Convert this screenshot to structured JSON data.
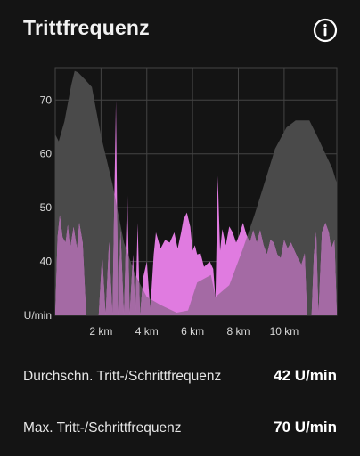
{
  "header": {
    "title": "Trittfrequenz",
    "info_icon": "info-circle-icon"
  },
  "colors": {
    "background": "#141414",
    "grid": "#444444",
    "elevation_area": "#4a4a4a",
    "cadence_area": "#e07be0",
    "cadence_overlap": "#a46aa4",
    "text": "#f2f2f2"
  },
  "chart_data": {
    "type": "area",
    "title": "",
    "xlabel": "",
    "ylabel": "U/min",
    "xlim": [
      0,
      12.3
    ],
    "ylim": [
      30,
      76
    ],
    "y_ticks": [
      "U/min",
      "40",
      "50",
      "60",
      "70"
    ],
    "y_tick_values": [
      30,
      40,
      50,
      60,
      70
    ],
    "x_ticks": [
      "2 km",
      "4 km",
      "6 km",
      "8 km",
      "10 km"
    ],
    "x_tick_values": [
      2,
      4,
      6,
      8,
      10
    ],
    "grid": true,
    "series": [
      {
        "role": "elevation-profile",
        "color": "#4a4a4a",
        "points": [
          [
            0.0,
            63.6
          ],
          [
            0.15,
            62.3
          ],
          [
            0.4,
            66.0
          ],
          [
            0.7,
            72.8
          ],
          [
            0.85,
            75.4
          ],
          [
            1.0,
            75.1
          ],
          [
            1.3,
            73.8
          ],
          [
            1.6,
            72.4
          ],
          [
            2.0,
            63.3
          ],
          [
            2.5,
            54.4
          ],
          [
            3.0,
            43.5
          ],
          [
            3.5,
            37.5
          ],
          [
            4.0,
            33.4
          ],
          [
            4.6,
            31.9
          ],
          [
            5.3,
            30.5
          ],
          [
            5.8,
            30.9
          ],
          [
            6.2,
            36.1
          ],
          [
            6.8,
            37.5
          ],
          [
            7.0,
            33.4
          ],
          [
            7.6,
            35.6
          ],
          [
            8.2,
            42.4
          ],
          [
            8.7,
            48.6
          ],
          [
            9.2,
            55.4
          ],
          [
            9.6,
            60.9
          ],
          [
            10.1,
            64.9
          ],
          [
            10.5,
            66.2
          ],
          [
            11.1,
            66.2
          ],
          [
            11.5,
            62.8
          ],
          [
            11.8,
            60.0
          ],
          [
            12.1,
            57.3
          ],
          [
            12.3,
            54.5
          ]
        ]
      },
      {
        "role": "cadence",
        "color": "#e07be0",
        "points": [
          [
            0.0,
            30.0
          ],
          [
            0.1,
            44.5
          ],
          [
            0.2,
            48.6
          ],
          [
            0.32,
            44.5
          ],
          [
            0.45,
            43.5
          ],
          [
            0.55,
            46.8
          ],
          [
            0.65,
            42.4
          ],
          [
            0.8,
            46.4
          ],
          [
            0.95,
            42.4
          ],
          [
            1.05,
            47.2
          ],
          [
            1.2,
            43.5
          ],
          [
            1.35,
            30.0
          ],
          [
            1.9,
            30.0
          ],
          [
            2.05,
            41.3
          ],
          [
            2.2,
            30.0
          ],
          [
            2.35,
            43.6
          ],
          [
            2.5,
            30.0
          ],
          [
            2.65,
            69.9
          ],
          [
            2.75,
            30.0
          ],
          [
            2.85,
            45.8
          ],
          [
            3.0,
            30.0
          ],
          [
            3.15,
            53.2
          ],
          [
            3.25,
            30.0
          ],
          [
            3.4,
            41.3
          ],
          [
            3.5,
            30.0
          ],
          [
            3.6,
            47.2
          ],
          [
            3.7,
            30.0
          ],
          [
            3.85,
            37.2
          ],
          [
            4.0,
            40.0
          ],
          [
            4.15,
            31.0
          ],
          [
            4.3,
            41.3
          ],
          [
            4.4,
            45.4
          ],
          [
            4.6,
            42.4
          ],
          [
            4.8,
            44.0
          ],
          [
            5.0,
            43.5
          ],
          [
            5.2,
            45.4
          ],
          [
            5.35,
            42.4
          ],
          [
            5.5,
            45.4
          ],
          [
            5.6,
            47.8
          ],
          [
            5.75,
            49.1
          ],
          [
            5.9,
            46.4
          ],
          [
            6.0,
            42.0
          ],
          [
            6.1,
            43.0
          ],
          [
            6.2,
            41.3
          ],
          [
            6.35,
            41.5
          ],
          [
            6.5,
            39.0
          ],
          [
            6.75,
            40.0
          ],
          [
            6.9,
            38.6
          ],
          [
            7.0,
            33.0
          ],
          [
            7.1,
            55.9
          ],
          [
            7.2,
            42.0
          ],
          [
            7.3,
            46.0
          ],
          [
            7.45,
            43.0
          ],
          [
            7.6,
            46.5
          ],
          [
            7.75,
            45.4
          ],
          [
            7.9,
            43.5
          ],
          [
            8.05,
            45.0
          ],
          [
            8.2,
            47.2
          ],
          [
            8.35,
            45.0
          ],
          [
            8.5,
            43.5
          ],
          [
            8.65,
            45.8
          ],
          [
            8.8,
            43.5
          ],
          [
            8.95,
            45.8
          ],
          [
            9.1,
            43.0
          ],
          [
            9.25,
            41.3
          ],
          [
            9.4,
            44.0
          ],
          [
            9.55,
            43.5
          ],
          [
            9.7,
            41.3
          ],
          [
            9.85,
            40.6
          ],
          [
            10.0,
            44.0
          ],
          [
            10.15,
            42.4
          ],
          [
            10.3,
            43.5
          ],
          [
            10.45,
            42.0
          ],
          [
            10.6,
            40.6
          ],
          [
            10.75,
            39.4
          ],
          [
            10.9,
            41.5
          ],
          [
            11.0,
            30.0
          ],
          [
            11.2,
            30.0
          ],
          [
            11.3,
            41.3
          ],
          [
            11.4,
            45.4
          ],
          [
            11.5,
            30.0
          ],
          [
            11.65,
            45.4
          ],
          [
            11.8,
            47.2
          ],
          [
            11.95,
            45.4
          ],
          [
            12.05,
            42.4
          ],
          [
            12.2,
            44.0
          ],
          [
            12.3,
            30.0
          ]
        ]
      }
    ]
  },
  "stats": [
    {
      "label": "Durchschn. Tritt-/Schrittfrequenz",
      "value": "42 U/min"
    },
    {
      "label": "Max. Tritt-/Schrittfrequenz",
      "value": "70 U/min"
    }
  ]
}
